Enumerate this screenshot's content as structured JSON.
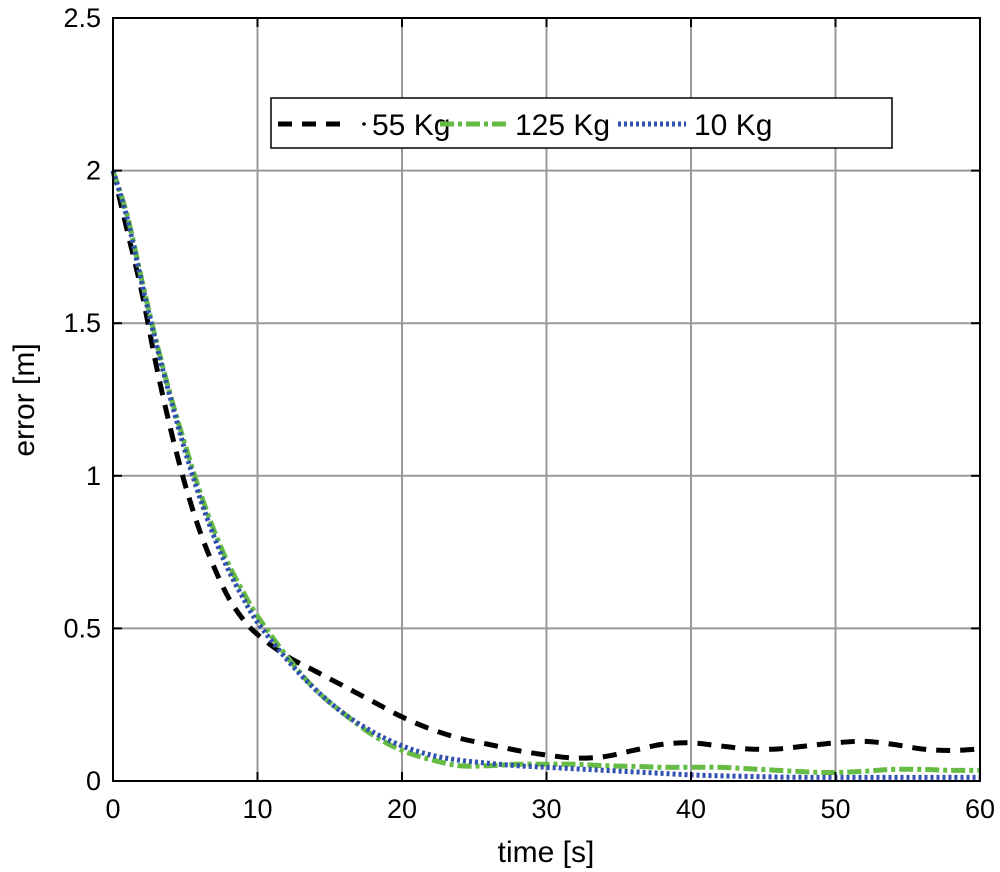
{
  "chart_data": {
    "type": "line",
    "title": "",
    "xlabel": "time [s]",
    "ylabel": "error [m]",
    "xlim": [
      0,
      60
    ],
    "ylim": [
      0,
      2.5
    ],
    "xticks": [
      0,
      10,
      20,
      30,
      40,
      50,
      60
    ],
    "yticks": [
      0,
      0.5,
      1,
      1.5,
      2,
      2.5
    ],
    "xtick_labels": [
      "0",
      "10",
      "20",
      "30",
      "40",
      "50",
      "60"
    ],
    "ytick_labels": [
      "0",
      "0.5",
      "1",
      "1.5",
      "2",
      "2.5"
    ],
    "grid": true,
    "legend_position": "top-center, horizontal",
    "x": [
      0,
      1,
      2,
      3,
      4,
      5,
      6,
      7,
      8,
      9,
      10,
      12,
      14,
      16,
      18,
      20,
      22,
      24,
      26,
      28,
      30,
      32,
      34,
      36,
      38,
      40,
      42,
      44,
      46,
      48,
      50,
      52,
      54,
      56,
      58,
      60
    ],
    "series": [
      {
        "name": "55 Kg",
        "color": "#000000",
        "style": "dashed",
        "values": [
          2.0,
          1.8,
          1.6,
          1.36,
          1.15,
          0.97,
          0.82,
          0.7,
          0.6,
          0.53,
          0.48,
          0.41,
          0.36,
          0.31,
          0.26,
          0.21,
          0.17,
          0.14,
          0.12,
          0.1,
          0.085,
          0.075,
          0.08,
          0.1,
          0.12,
          0.125,
          0.115,
          0.105,
          0.105,
          0.115,
          0.125,
          0.13,
          0.12,
          0.105,
          0.1,
          0.105
        ]
      },
      {
        "name": "125 Kg",
        "color": "#66bb44",
        "style": "dash-dot",
        "values": [
          2.0,
          1.85,
          1.64,
          1.44,
          1.26,
          1.1,
          0.95,
          0.82,
          0.71,
          0.62,
          0.54,
          0.41,
          0.3,
          0.22,
          0.15,
          0.1,
          0.07,
          0.05,
          0.05,
          0.055,
          0.055,
          0.055,
          0.05,
          0.048,
          0.045,
          0.045,
          0.045,
          0.04,
          0.035,
          0.03,
          0.028,
          0.032,
          0.038,
          0.038,
          0.035,
          0.035
        ]
      },
      {
        "name": "10 Kg",
        "color": "#3050b0",
        "style": "dotted",
        "values": [
          2.0,
          1.84,
          1.63,
          1.43,
          1.25,
          1.08,
          0.93,
          0.8,
          0.69,
          0.6,
          0.52,
          0.4,
          0.3,
          0.22,
          0.16,
          0.115,
          0.085,
          0.068,
          0.058,
          0.05,
          0.045,
          0.04,
          0.035,
          0.03,
          0.025,
          0.02,
          0.017,
          0.015,
          0.013,
          0.012,
          0.012,
          0.012,
          0.012,
          0.012,
          0.012,
          0.012
        ]
      }
    ]
  }
}
